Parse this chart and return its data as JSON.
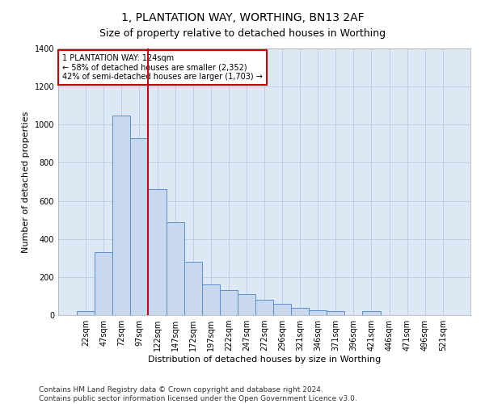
{
  "title": "1, PLANTATION WAY, WORTHING, BN13 2AF",
  "subtitle": "Size of property relative to detached houses in Worthing",
  "xlabel": "Distribution of detached houses by size in Worthing",
  "ylabel": "Number of detached properties",
  "categories": [
    "22sqm",
    "47sqm",
    "72sqm",
    "97sqm",
    "122sqm",
    "147sqm",
    "172sqm",
    "197sqm",
    "222sqm",
    "247sqm",
    "272sqm",
    "296sqm",
    "321sqm",
    "346sqm",
    "371sqm",
    "396sqm",
    "421sqm",
    "446sqm",
    "471sqm",
    "496sqm",
    "521sqm"
  ],
  "values": [
    20,
    330,
    1050,
    930,
    660,
    490,
    280,
    160,
    130,
    110,
    80,
    60,
    40,
    25,
    20,
    0,
    20,
    0,
    0,
    0,
    0
  ],
  "bar_color": "#c8d9ef",
  "bar_edge_color": "#5b8fcc",
  "vline_color": "#cc0000",
  "annotation_text": "1 PLANTATION WAY: 124sqm\n← 58% of detached houses are smaller (2,352)\n42% of semi-detached houses are larger (1,703) →",
  "annotation_box_color": "#cc0000",
  "ylim": [
    0,
    1400
  ],
  "yticks": [
    0,
    200,
    400,
    600,
    800,
    1000,
    1200,
    1400
  ],
  "background_color": "#ffffff",
  "plot_bg_color": "#dce9f5",
  "grid_color": "#c0cfe0",
  "title_fontsize": 10,
  "subtitle_fontsize": 9,
  "label_fontsize": 8,
  "tick_fontsize": 7,
  "footer_fontsize": 6.5
}
